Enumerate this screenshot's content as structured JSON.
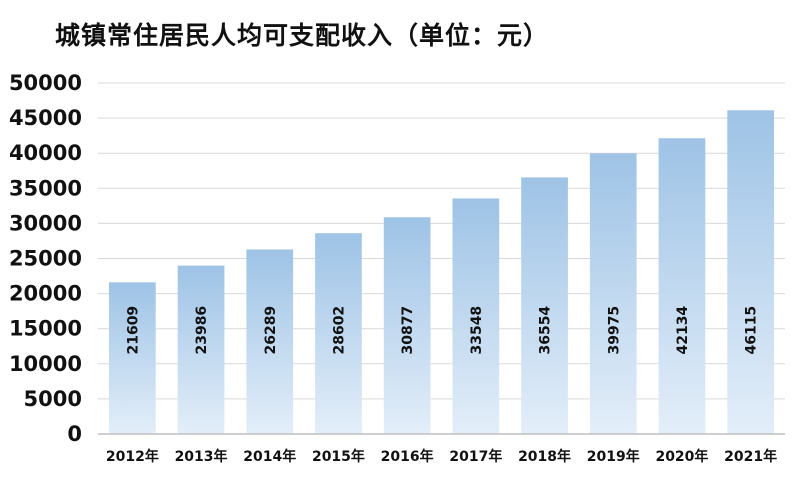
{
  "chart_data": {
    "type": "bar",
    "title": "城镇常住居民人均可支配收入（单位：元）",
    "categories": [
      "2012年",
      "2013年",
      "2014年",
      "2015年",
      "2016年",
      "2017年",
      "2018年",
      "2019年",
      "2020年",
      "2021年"
    ],
    "values": [
      21609,
      23986,
      26289,
      28602,
      30877,
      33548,
      36554,
      39975,
      42134,
      46115
    ],
    "yticks": [
      "0",
      "5000",
      "10000",
      "15000",
      "20000",
      "25000",
      "30000",
      "35000",
      "40000",
      "45000",
      "50000"
    ],
    "ylim": [
      0,
      50000
    ],
    "grid": true,
    "legend": "none",
    "colors": {
      "bar_top": "#9EC3E6",
      "bar_bottom": "#E3EEF9",
      "grid": "#d9d9d9",
      "axis": "#bfbfbf"
    }
  }
}
